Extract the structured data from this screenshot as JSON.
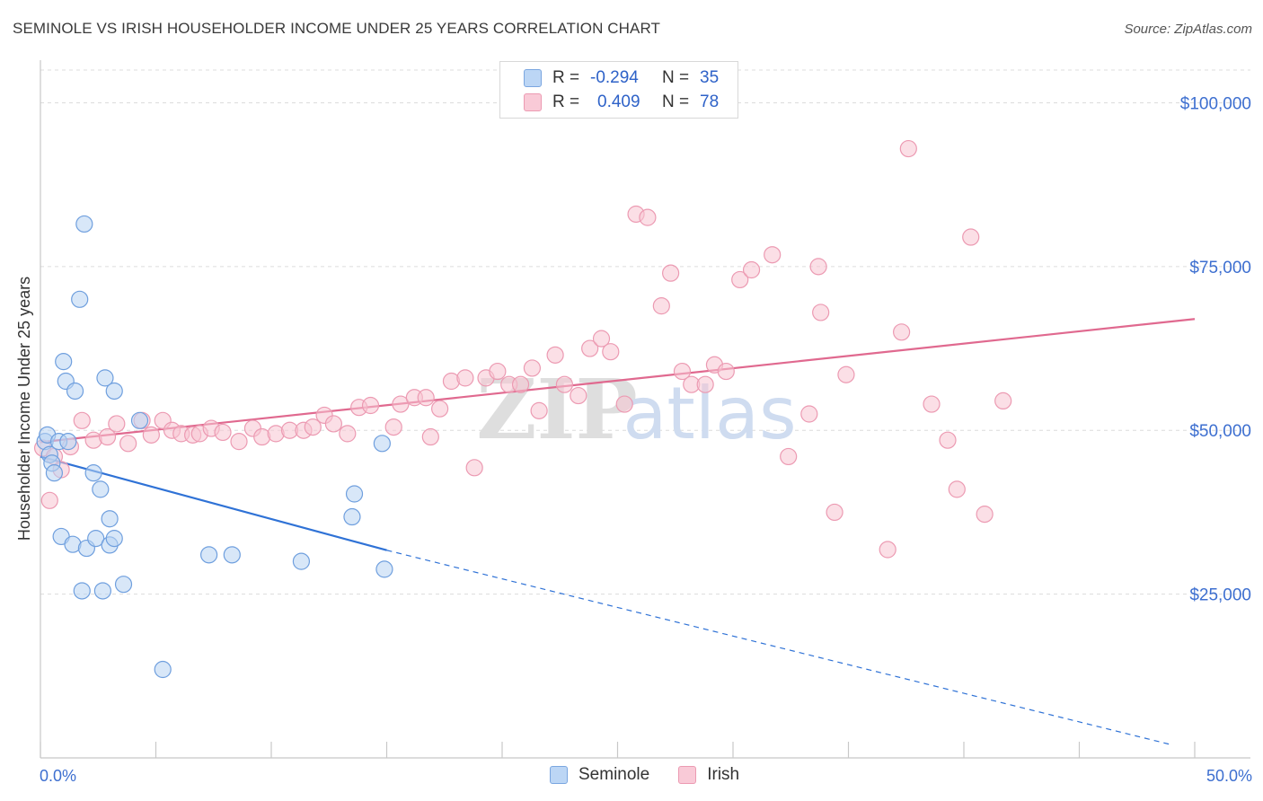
{
  "header": {
    "title": "SEMINOLE VS IRISH HOUSEHOLDER INCOME UNDER 25 YEARS CORRELATION CHART",
    "source": "Source: ZipAtlas.com"
  },
  "watermark": {
    "zip": "ZIP",
    "atlas": "atlas"
  },
  "legend": {
    "rows": [
      {
        "r_label": "R =",
        "r_value": "-0.294",
        "n_label": "N =",
        "n_value": "35",
        "color": "#a8c8f0"
      },
      {
        "r_label": "R =",
        "r_value": "0.409",
        "n_label": "N =",
        "n_value": "78",
        "color": "#f5b8c8"
      }
    ]
  },
  "bottom_legend": {
    "seminole": "Seminole",
    "irish": "Irish"
  },
  "chart_data": {
    "type": "scatter",
    "title": "SEMINOLE VS IRISH HOUSEHOLDER INCOME UNDER 25 YEARS CORRELATION CHART",
    "xlabel": "",
    "ylabel": "Householder Income Under 25 years",
    "xlim": [
      0,
      50
    ],
    "ylim": [
      0,
      105000
    ],
    "x_tick_labels": {
      "left": "0.0%",
      "right": "50.0%"
    },
    "y_ticks": [
      {
        "value": 25000,
        "label": "$25,000"
      },
      {
        "value": 50000,
        "label": "$50,000"
      },
      {
        "value": 75000,
        "label": "$75,000"
      },
      {
        "value": 100000,
        "label": "$100,000"
      }
    ],
    "grid": true,
    "series": [
      {
        "name": "Seminole",
        "color": "#6fa0e0",
        "fill": "#a8c8f0",
        "points": [
          [
            0.2,
            48300
          ],
          [
            0.3,
            49300
          ],
          [
            0.4,
            46300
          ],
          [
            0.5,
            45000
          ],
          [
            0.6,
            43500
          ],
          [
            0.8,
            48300
          ],
          [
            0.9,
            33800
          ],
          [
            1.0,
            60500
          ],
          [
            1.1,
            57500
          ],
          [
            1.2,
            48300
          ],
          [
            1.4,
            32600
          ],
          [
            1.5,
            56000
          ],
          [
            1.7,
            70000
          ],
          [
            1.8,
            25500
          ],
          [
            1.9,
            81500
          ],
          [
            2.0,
            32000
          ],
          [
            2.3,
            43500
          ],
          [
            2.4,
            33500
          ],
          [
            2.6,
            41000
          ],
          [
            2.7,
            25500
          ],
          [
            2.8,
            58000
          ],
          [
            3.0,
            32500
          ],
          [
            3.0,
            36500
          ],
          [
            3.2,
            56000
          ],
          [
            3.2,
            33500
          ],
          [
            3.6,
            26500
          ],
          [
            4.3,
            51500
          ],
          [
            5.3,
            13500
          ],
          [
            7.3,
            31000
          ],
          [
            8.3,
            31000
          ],
          [
            11.3,
            30000
          ],
          [
            13.5,
            36800
          ],
          [
            13.6,
            40300
          ],
          [
            14.8,
            48000
          ],
          [
            14.9,
            28800
          ]
        ],
        "trend": {
          "x0": 0,
          "y0": 46000,
          "x1": 15,
          "y1": 31700,
          "dash_x1": 49,
          "dash_y1": 2000
        }
      },
      {
        "name": "Irish",
        "color": "#e890a8",
        "fill": "#f5b8c8",
        "points": [
          [
            0.1,
            47300
          ],
          [
            0.4,
            39300
          ],
          [
            0.6,
            46000
          ],
          [
            0.9,
            44000
          ],
          [
            1.3,
            47500
          ],
          [
            1.8,
            51500
          ],
          [
            2.3,
            48500
          ],
          [
            2.9,
            49000
          ],
          [
            3.3,
            51000
          ],
          [
            3.8,
            48000
          ],
          [
            4.4,
            51500
          ],
          [
            4.8,
            49300
          ],
          [
            5.3,
            51500
          ],
          [
            5.7,
            50000
          ],
          [
            6.1,
            49500
          ],
          [
            6.6,
            49300
          ],
          [
            6.9,
            49500
          ],
          [
            7.4,
            50300
          ],
          [
            7.9,
            49700
          ],
          [
            8.6,
            48300
          ],
          [
            9.2,
            50300
          ],
          [
            9.6,
            49000
          ],
          [
            10.2,
            49500
          ],
          [
            10.8,
            50000
          ],
          [
            11.4,
            50000
          ],
          [
            11.8,
            50500
          ],
          [
            12.3,
            52300
          ],
          [
            12.7,
            51000
          ],
          [
            13.3,
            49500
          ],
          [
            13.8,
            53500
          ],
          [
            14.3,
            53800
          ],
          [
            15.3,
            50500
          ],
          [
            15.6,
            54000
          ],
          [
            16.2,
            55000
          ],
          [
            16.7,
            55000
          ],
          [
            16.9,
            49000
          ],
          [
            17.3,
            53300
          ],
          [
            17.8,
            57500
          ],
          [
            18.4,
            58000
          ],
          [
            18.8,
            44300
          ],
          [
            19.3,
            58000
          ],
          [
            19.8,
            59000
          ],
          [
            20.3,
            57000
          ],
          [
            20.8,
            57000
          ],
          [
            21.3,
            59500
          ],
          [
            21.6,
            53000
          ],
          [
            22.3,
            61500
          ],
          [
            22.7,
            57000
          ],
          [
            23.3,
            55300
          ],
          [
            23.8,
            62500
          ],
          [
            24.3,
            64000
          ],
          [
            24.7,
            62000
          ],
          [
            25.3,
            54000
          ],
          [
            25.8,
            83000
          ],
          [
            26.3,
            82500
          ],
          [
            26.9,
            69000
          ],
          [
            27.3,
            74000
          ],
          [
            27.8,
            59000
          ],
          [
            28.2,
            57000
          ],
          [
            28.8,
            57000
          ],
          [
            29.2,
            60000
          ],
          [
            29.7,
            59000
          ],
          [
            30.3,
            73000
          ],
          [
            30.8,
            74500
          ],
          [
            31.7,
            76800
          ],
          [
            32.4,
            46000
          ],
          [
            33.3,
            52500
          ],
          [
            33.7,
            75000
          ],
          [
            33.8,
            68000
          ],
          [
            34.4,
            37500
          ],
          [
            34.9,
            58500
          ],
          [
            36.7,
            31800
          ],
          [
            37.3,
            65000
          ],
          [
            37.6,
            93000
          ],
          [
            38.6,
            54000
          ],
          [
            39.3,
            48500
          ],
          [
            39.7,
            41000
          ],
          [
            40.3,
            79500
          ],
          [
            40.9,
            37200
          ],
          [
            41.7,
            54500
          ]
        ],
        "trend": {
          "x0": 0,
          "y0": 48200,
          "x1": 50,
          "y1": 67000
        }
      }
    ]
  }
}
